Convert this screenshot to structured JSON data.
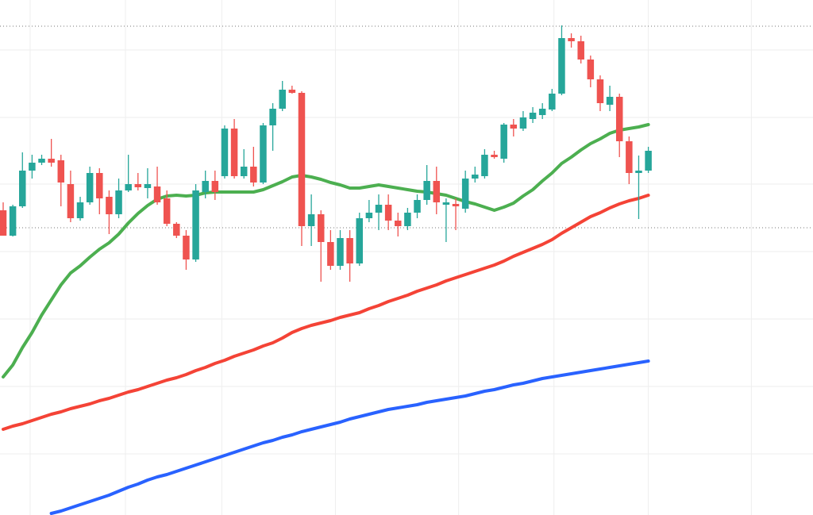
{
  "chart_data": {
    "type": "candlestick",
    "up_color": "#26a69a",
    "down_color": "#ef5350",
    "grid": true,
    "xlim": [
      -0.33,
      84.1
    ],
    "xticks": [
      2.8,
      12.7,
      22.7,
      34.5,
      47.3,
      57.2,
      67,
      77.7
    ],
    "ylim": [
      0,
      649
    ],
    "yticks": [
      77,
      162,
      247,
      332,
      417,
      501,
      586
    ],
    "price_lines": [
      616,
      362
    ],
    "open": [
      384,
      352,
      389,
      434,
      444,
      449,
      447,
      417,
      374,
      394,
      431,
      401,
      379,
      409,
      417,
      412,
      414,
      399,
      367,
      352,
      322,
      407,
      421,
      427,
      487,
      427,
      439,
      419,
      491,
      512,
      536,
      532,
      364,
      379,
      344,
      314,
      349,
      317,
      374,
      381,
      391,
      371,
      364,
      381,
      397,
      421,
      391,
      392,
      386,
      424,
      427,
      454,
      449,
      492,
      487,
      499,
      504,
      511,
      531,
      601,
      597,
      574,
      549,
      517,
      527,
      471,
      431,
      434
    ],
    "high": [
      394,
      391,
      457,
      454,
      454,
      474,
      454,
      434,
      401,
      439,
      437,
      409,
      424,
      454,
      431,
      437,
      439,
      409,
      369,
      359,
      417,
      434,
      434,
      491,
      499,
      461,
      464,
      494,
      519,
      547,
      541,
      534,
      404,
      384,
      359,
      359,
      359,
      381,
      397,
      404,
      404,
      381,
      387,
      404,
      441,
      439,
      399,
      399,
      434,
      439,
      461,
      459,
      494,
      499,
      509,
      514,
      519,
      537,
      617,
      607,
      604,
      579,
      554,
      541,
      531,
      477,
      453,
      464
    ],
    "low": [
      352,
      351,
      387,
      424,
      441,
      439,
      389,
      369,
      371,
      391,
      379,
      354,
      374,
      407,
      409,
      399,
      391,
      364,
      349,
      309,
      319,
      399,
      397,
      424,
      424,
      424,
      414,
      417,
      459,
      509,
      531,
      339,
      339,
      294,
      309,
      309,
      294,
      314,
      369,
      359,
      359,
      351,
      359,
      374,
      391,
      379,
      344,
      359,
      381,
      419,
      424,
      449,
      444,
      477,
      484,
      494,
      499,
      509,
      529,
      589,
      569,
      539,
      509,
      509,
      451,
      417,
      373,
      431
    ],
    "close": [
      352,
      389,
      434,
      444,
      449,
      444,
      419,
      374,
      394,
      431,
      399,
      379,
      409,
      417,
      413,
      417,
      394,
      367,
      352,
      322,
      409,
      421,
      407,
      487,
      427,
      439,
      419,
      491,
      512,
      536,
      532,
      364,
      379,
      344,
      314,
      349,
      317,
      374,
      381,
      391,
      371,
      364,
      381,
      397,
      421,
      394,
      394,
      389,
      424,
      429,
      454,
      451,
      492,
      487,
      501,
      507,
      512,
      531,
      601,
      597,
      574,
      549,
      519,
      527,
      471,
      431,
      434,
      459
    ],
    "series": [
      {
        "color": "#4caf50",
        "values": [
          174,
          189,
          211,
          230,
          252,
          271,
          290,
          305,
          314,
          325,
          335,
          343,
          354,
          368,
          380,
          390,
          398,
          402,
          403,
          402,
          403,
          406,
          407,
          407,
          407,
          407,
          407,
          410,
          415,
          420,
          426,
          428,
          426,
          423,
          419,
          416,
          412,
          412,
          414,
          416,
          414,
          412,
          410,
          408,
          407,
          405,
          403,
          399,
          395,
          392,
          388,
          384,
          388,
          393,
          402,
          410,
          421,
          431,
          443,
          451,
          460,
          468,
          474,
          481,
          485,
          487,
          489,
          492
        ]
      },
      {
        "color": "#f44336",
        "values": [
          108,
          112,
          115,
          119,
          123,
          127,
          130,
          134,
          137,
          140,
          144,
          147,
          151,
          155,
          158,
          162,
          166,
          170,
          173,
          177,
          182,
          186,
          191,
          195,
          200,
          204,
          208,
          213,
          217,
          223,
          230,
          235,
          239,
          242,
          245,
          249,
          252,
          255,
          260,
          264,
          269,
          273,
          277,
          282,
          286,
          290,
          295,
          299,
          303,
          307,
          311,
          315,
          320,
          326,
          331,
          336,
          341,
          347,
          355,
          362,
          369,
          376,
          381,
          387,
          392,
          396,
          399,
          403
        ]
      },
      {
        "color": "#2962ff",
        "values": [
          null,
          null,
          null,
          null,
          null,
          2,
          5,
          9,
          13,
          17,
          21,
          25,
          30,
          35,
          39,
          44,
          48,
          51,
          55,
          59,
          63,
          67,
          71,
          75,
          79,
          83,
          87,
          91,
          94,
          98,
          101,
          105,
          108,
          111,
          114,
          117,
          121,
          124,
          127,
          130,
          133,
          135,
          137,
          139,
          142,
          144,
          146,
          148,
          150,
          153,
          156,
          158,
          161,
          164,
          166,
          169,
          172,
          174,
          176,
          178,
          180,
          182,
          184,
          186,
          188,
          190,
          192,
          194
        ]
      }
    ]
  }
}
